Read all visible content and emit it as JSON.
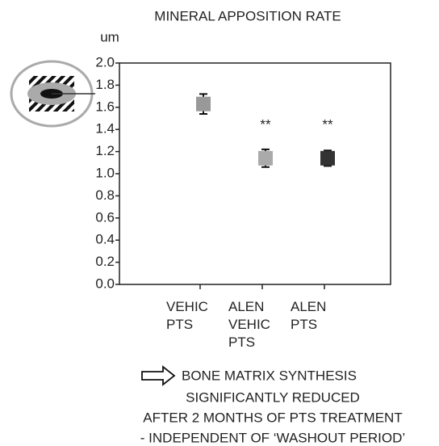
{
  "chart_data": {
    "type": "point",
    "title": "MINERAL APPOSITION RATE",
    "y_label": "um",
    "categories": [
      "VEHIC\nPTS",
      "ALEN\nVEHIC\nPTS",
      "ALEN\nPTS"
    ],
    "label_colors": [
      "#9a9a9a",
      "#dcdcdc",
      "#111111"
    ],
    "values": [
      1.63,
      1.14,
      1.14
    ],
    "errors": [
      0.09,
      0.08,
      0.07
    ],
    "colors": [
      "#999999",
      "#aaaaaa",
      "#333333"
    ],
    "annotations": [
      "**",
      "**"
    ],
    "ylim": [
      0,
      2
    ],
    "yticks": [
      {
        "value": 0,
        "label": "0.0"
      },
      0.2,
      0.4,
      0.6,
      0.8,
      {
        "value": 1,
        "label": "1.0"
      },
      1.2,
      1.4,
      1.6,
      1.8,
      {
        "value": 2,
        "label": "2.0"
      }
    ]
  },
  "footer": {
    "lines": [
      "BONE MATRIX SYNTHESIS",
      "SIGNIFICANTLY REDUCED",
      "AFTER 2 MONTHS OF PTS TREATMENT",
      "- INDEPENDENT OF ‘WASHOUT PERIOD’"
    ]
  }
}
